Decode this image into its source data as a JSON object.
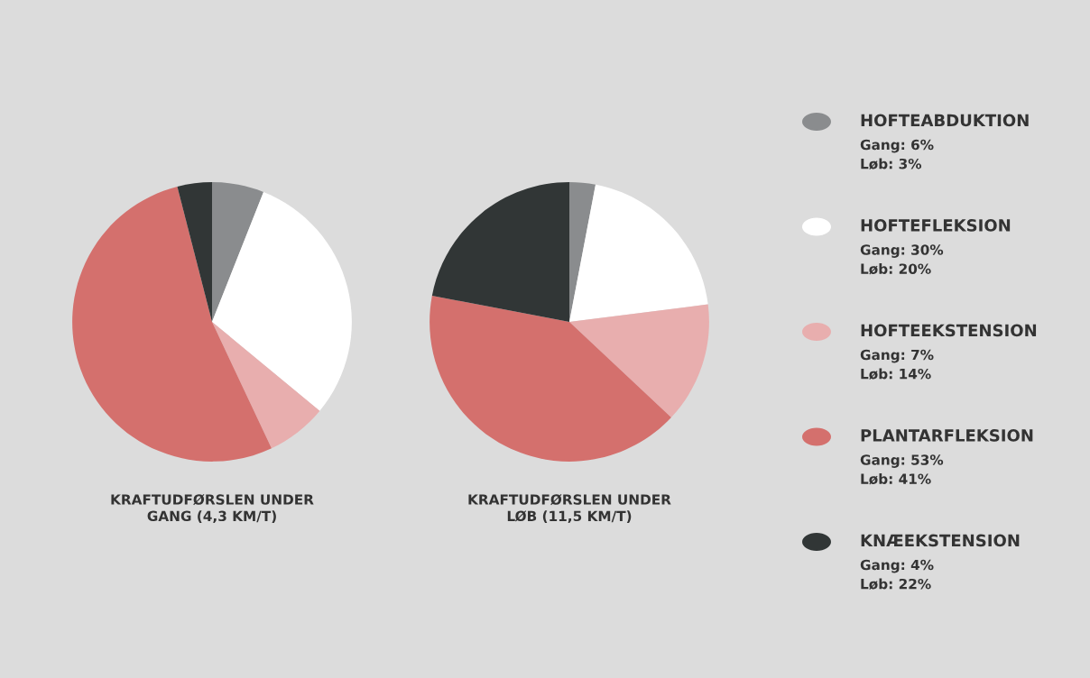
{
  "chart_data": [
    {
      "type": "pie",
      "title": "KRAFTUDFØRSLEN UNDER\nGANG (4,3 KM/T)",
      "categories": [
        "HOFTEABDUKTION",
        "HOFTEFLEKSION",
        "HOFTEEKSTENSION",
        "PLANTARFLEKSION",
        "KNÆEKSTENSION"
      ],
      "values": [
        6,
        30,
        7,
        53,
        4
      ],
      "colors": [
        "#8a8c8e",
        "#ffffff",
        "#e8aeae",
        "#d4706d",
        "#313636"
      ],
      "annotations": [
        "Gang: 6%",
        "Gang: 30%",
        "Gang: 7%",
        "Gang: 53%",
        "Gang: 4%"
      ],
      "legend": "right"
    },
    {
      "type": "pie",
      "title": "KRAFTUDFØRSLEN UNDER\nLØB (11,5 KM/T)",
      "categories": [
        null,
        null,
        null,
        null,
        null
      ],
      "values": [
        3,
        20,
        14,
        41,
        22
      ],
      "colors": [
        "#8a8c8e",
        "#ffffff",
        "#e8aeae",
        "#d4706d",
        "#313636"
      ],
      "annotations": [
        "Løb: 3%",
        "Løb: 20%",
        "Løb: 14%",
        "Løb: 41%",
        "Løb: 22%"
      ]
    }
  ]
}
